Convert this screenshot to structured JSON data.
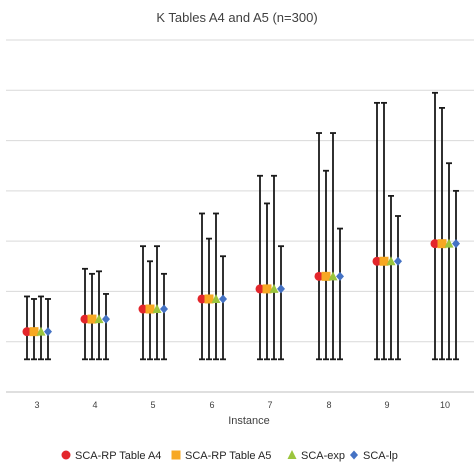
{
  "chart_data": {
    "type": "scatter",
    "title": "K Tables A4 and A5 (n=300)",
    "xlabel": "Instance",
    "ylabel": "",
    "categories": [
      "3",
      "4",
      "5",
      "6",
      "7",
      "8",
      "9",
      "10"
    ],
    "ylim": [
      0,
      7
    ],
    "grid": true,
    "legend_position": "bottom",
    "series": [
      {
        "name": "SCA-RP Table A4",
        "marker": "circle",
        "color": "#e3262b",
        "values": [
          1.2,
          1.45,
          1.65,
          1.85,
          2.05,
          2.3,
          2.6,
          2.95
        ],
        "err_low": [
          0.65,
          0.65,
          0.65,
          0.65,
          0.65,
          0.65,
          0.65,
          0.65
        ],
        "err_high": [
          1.9,
          2.45,
          2.9,
          3.55,
          4.3,
          5.15,
          5.75,
          5.95
        ]
      },
      {
        "name": "SCA-RP Table A5",
        "marker": "square",
        "color": "#f7a823",
        "values": [
          1.2,
          1.45,
          1.65,
          1.85,
          2.05,
          2.3,
          2.6,
          2.95
        ],
        "err_low": [
          0.65,
          0.65,
          0.65,
          0.65,
          0.65,
          0.65,
          0.65,
          0.65
        ],
        "err_high": [
          1.85,
          2.35,
          2.6,
          3.05,
          3.75,
          4.4,
          5.75,
          5.65
        ]
      },
      {
        "name": "SCA-exp",
        "marker": "triangle",
        "color": "#9bc53d",
        "values": [
          1.2,
          1.45,
          1.65,
          1.85,
          2.05,
          2.3,
          2.6,
          2.95
        ],
        "err_low": [
          0.65,
          0.65,
          0.65,
          0.65,
          0.65,
          0.65,
          0.65,
          0.65
        ],
        "err_high": [
          1.9,
          2.4,
          2.9,
          3.55,
          4.3,
          5.15,
          3.9,
          4.55
        ]
      },
      {
        "name": "SCA-lp",
        "marker": "diamond",
        "color": "#4472c4",
        "values": [
          1.2,
          1.45,
          1.65,
          1.85,
          2.05,
          2.3,
          2.6,
          2.95
        ],
        "err_low": [
          0.65,
          0.65,
          0.65,
          0.65,
          0.65,
          0.65,
          0.65,
          0.65
        ],
        "err_high": [
          1.85,
          1.95,
          2.35,
          2.7,
          2.9,
          3.25,
          3.5,
          4.0
        ]
      }
    ]
  }
}
